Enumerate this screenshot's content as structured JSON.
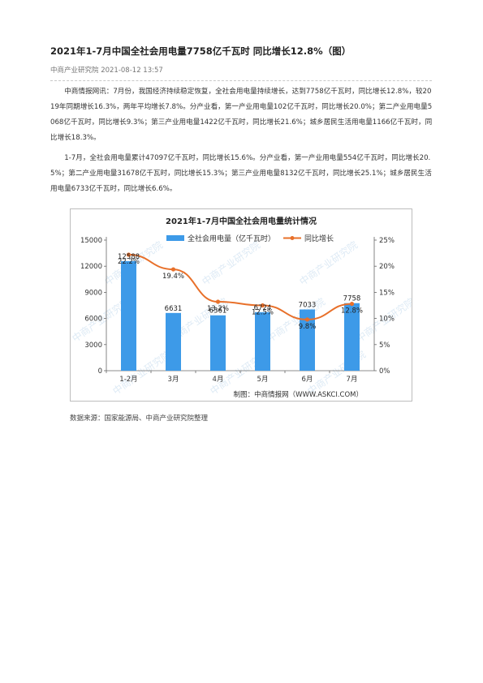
{
  "article": {
    "title": "2021年1-7月中国全社会用电量7758亿千瓦时 同比增长12.8%（图）",
    "source_line": "中商产业研究院 2021-08-12 13:57",
    "paragraphs": [
      "中商情报网讯：7月份，我国经济持续稳定恢复，全社会用电量持续增长，达到7758亿千瓦时，同比增长12.8%，较2019年同期增长16.3%，两年平均增长7.8%。分产业看，第一产业用电量102亿千瓦时，同比增长20.0%；第二产业用电量5068亿千瓦时，同比增长9.3%；第三产业用电量1422亿千瓦时，同比增长21.6%；城乡居民生活用电量1166亿千瓦时，同比增长18.3%。",
      "1-7月，全社会用电量累计47097亿千瓦时，同比增长15.6%。分产业看，第一产业用电量554亿千瓦时，同比增长20.5%；第二产业用电量31678亿千瓦时，同比增长15.3%；第三产业用电量8132亿千瓦时，同比增长25.1%；城乡居民生活用电量6733亿千瓦时，同比增长6.6%。"
    ],
    "data_source": "数据来源：国家能源局、中商产业研究院整理"
  },
  "chart_data": {
    "type": "bar",
    "title": "2021年1-7月中国全社会用电量统计情况",
    "categories": [
      "1-2月",
      "3月",
      "4月",
      "5月",
      "6月",
      "7月"
    ],
    "series": [
      {
        "name": "全社会用电量（亿千瓦时）",
        "type": "bar",
        "axis": "left",
        "values": [
          12588,
          6631,
          6361,
          6724,
          7033,
          7758
        ]
      },
      {
        "name": "同比增长",
        "type": "line",
        "axis": "right",
        "values": [
          22.2,
          19.4,
          13.2,
          12.5,
          9.8,
          12.8
        ]
      }
    ],
    "value_labels": {
      "bar": [
        "12588",
        "6631",
        "6361",
        "6724",
        "7033",
        "7758"
      ],
      "line": [
        "22.2%",
        "19.4%",
        "13.2%",
        "12.5%",
        "9.8%",
        "12.8%"
      ]
    },
    "ylim_left": [
      0,
      15000
    ],
    "yticks_left": [
      0,
      3000,
      6000,
      9000,
      12000,
      15000
    ],
    "ylim_right": [
      0,
      25
    ],
    "yticks_right": [
      "0%",
      "5%",
      "10%",
      "15%",
      "20%",
      "25%"
    ],
    "legend_position": "top",
    "credit": "制图：中商情报网（WWW.ASKCI.COM）",
    "watermark": "中商产业研究院",
    "colors": {
      "bar": "#3d9ae8",
      "line": "#e8702a"
    }
  }
}
